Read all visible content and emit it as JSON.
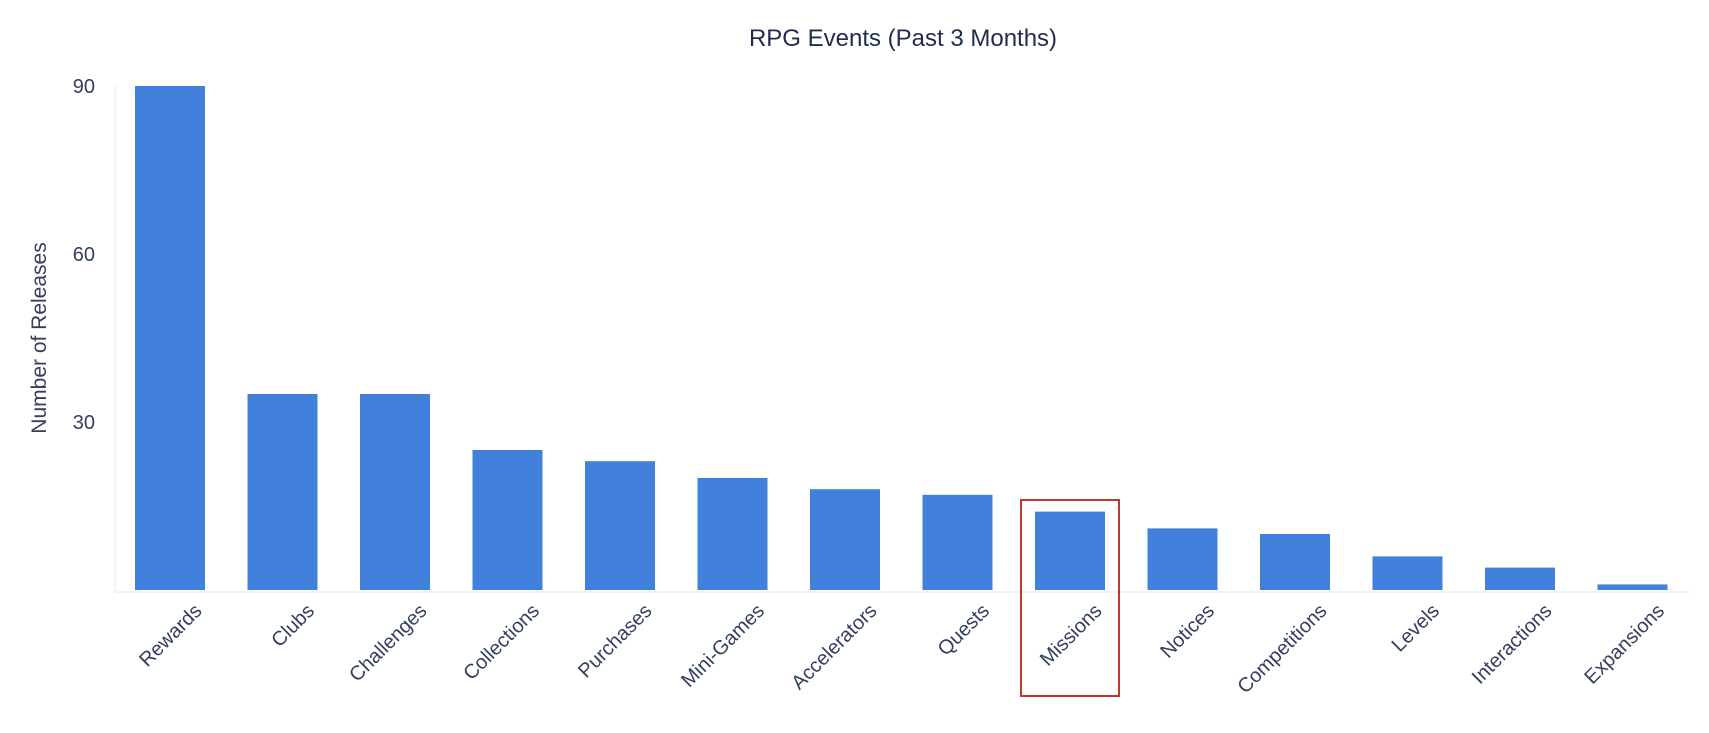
{
  "chart_data": {
    "type": "bar",
    "title": "RPG Events (Past 3 Months)",
    "xlabel": "",
    "ylabel": "Number of Releases",
    "ylim": [
      0,
      90
    ],
    "yticks": [
      30,
      60,
      90
    ],
    "grid": false,
    "categories": [
      "Rewards",
      "Clubs",
      "Challenges",
      "Collections",
      "Purchases",
      "Mini-Games",
      "Accelerators",
      "Quests",
      "Missions",
      "Notices",
      "Competitions",
      "Levels",
      "Interactions",
      "Expansions"
    ],
    "values": [
      90,
      35,
      35,
      25,
      23,
      20,
      18,
      17,
      14,
      11,
      10,
      6,
      4,
      1
    ],
    "highlight": "Missions",
    "bar_color": "#4281db",
    "highlight_color": "#c0392b"
  }
}
